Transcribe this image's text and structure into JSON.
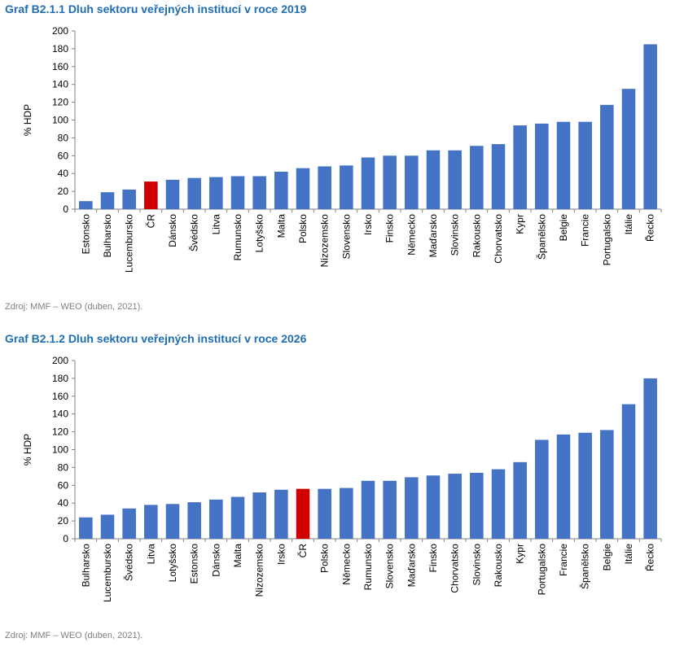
{
  "colors": {
    "bar": "#4472c4",
    "highlight": "#d00000",
    "axis": "#7f7f7f",
    "title": "#1f6db5"
  },
  "chart_data": [
    {
      "type": "bar",
      "title": "Graf B2.1.1 Dluh sektoru veřejných institucí v roce 2019",
      "ylabel": "% HDP",
      "source": "Zdroj: MMF – WEO (duben, 2021).",
      "ylim": [
        0,
        200
      ],
      "yticks": [
        0,
        20,
        40,
        60,
        80,
        100,
        120,
        140,
        160,
        180,
        200
      ],
      "grid": false,
      "highlight_category": "ČR",
      "categories": [
        "Estonsko",
        "Bulharsko",
        "Lucembursko",
        "ČR",
        "Dánsko",
        "Švédsko",
        "Litva",
        "Rumunsko",
        "Lotyšsko",
        "Malta",
        "Polsko",
        "Nizozemsko",
        "Slovensko",
        "Irsko",
        "Finsko",
        "Německo",
        "Maďarsko",
        "Slovinsko",
        "Rakousko",
        "Chorvatsko",
        "Kypr",
        "Španělsko",
        "Belgie",
        "Francie",
        "Portugalsko",
        "Itálie",
        "Řecko"
      ],
      "values": [
        9,
        19,
        22,
        31,
        33,
        35,
        36,
        37,
        37,
        42,
        46,
        48,
        49,
        58,
        60,
        60,
        66,
        66,
        71,
        73,
        94,
        96,
        98,
        98,
        117,
        135,
        185
      ]
    },
    {
      "type": "bar",
      "title": "Graf B2.1.2 Dluh sektoru veřejných institucí v roce 2026",
      "ylabel": "% HDP",
      "source": "Zdroj: MMF – WEO (duben, 2021).",
      "ylim": [
        0,
        200
      ],
      "yticks": [
        0,
        20,
        40,
        60,
        80,
        100,
        120,
        140,
        160,
        180,
        200
      ],
      "grid": false,
      "highlight_category": "ČR",
      "categories": [
        "Bulharsko",
        "Lucembursko",
        "Švédsko",
        "Litva",
        "Lotyšsko",
        "Estonsko",
        "Dánsko",
        "Malta",
        "Nizozemsko",
        "Irsko",
        "ČR",
        "Polsko",
        "Německo",
        "Rumunsko",
        "Slovensko",
        "Maďarsko",
        "Finsko",
        "Chorvatsko",
        "Slovinsko",
        "Rakousko",
        "Kypr",
        "Portugalsko",
        "Francie",
        "Španělsko",
        "Belgie",
        "Itálie",
        "Řecko"
      ],
      "values": [
        24,
        27,
        34,
        38,
        39,
        41,
        44,
        47,
        52,
        55,
        56,
        56,
        57,
        65,
        65,
        69,
        71,
        73,
        74,
        78,
        86,
        111,
        117,
        119,
        122,
        151,
        180
      ]
    }
  ]
}
